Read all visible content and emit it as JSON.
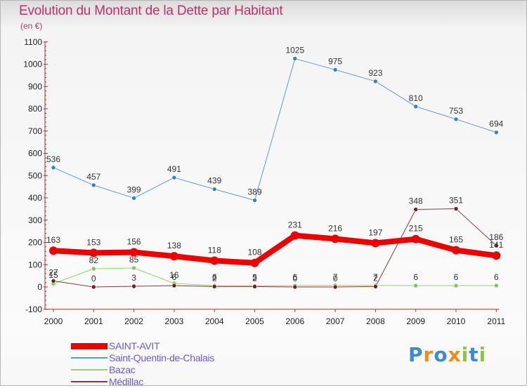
{
  "header": {
    "title": "Evolution du Montant de la Dette par Habitant",
    "subtitle": "(en €)"
  },
  "chart_data": {
    "type": "line",
    "title": "Evolution du Montant de la Dette par Habitant",
    "ylabel": "(en €)",
    "xlabel": "",
    "x": [
      "2000",
      "2001",
      "2002",
      "2003",
      "2004",
      "2005",
      "2006",
      "2007",
      "2008",
      "2009",
      "2010",
      "2011"
    ],
    "ylim": [
      -100,
      1100
    ],
    "yticks": [
      -100,
      0,
      100,
      200,
      300,
      400,
      500,
      600,
      700,
      800,
      900,
      1000,
      1100
    ],
    "grid": false,
    "legend_position": "bottom-left",
    "series": [
      {
        "name": "Saint-Quentin-de-Chalais",
        "color": "#5a9bd5",
        "marker_color": "#3a7fc4",
        "width": 1,
        "values": [
          536,
          457,
          399,
          491,
          439,
          389,
          1025,
          975,
          923,
          810,
          753,
          694
        ]
      },
      {
        "name": "Bazac",
        "color": "#8fd66a",
        "marker_color": "#7cc94f",
        "width": 1,
        "values": [
          15,
          82,
          85,
          16,
          6,
          5,
          6,
          7,
          7,
          6,
          6,
          6
        ]
      },
      {
        "name": "Médillac",
        "color": "#8b3a3a",
        "marker_color": "#6b1f1f",
        "width": 1,
        "values": [
          27,
          0,
          3,
          6,
          2,
          2,
          0,
          0,
          2,
          348,
          351,
          186
        ]
      },
      {
        "name": "SAINT-AVIT",
        "color": "#ee0000",
        "marker_color": "#ee0000",
        "width": 8,
        "values": [
          163,
          153,
          156,
          138,
          118,
          108,
          231,
          216,
          197,
          215,
          165,
          141
        ]
      }
    ],
    "legend_order": [
      "SAINT-AVIT",
      "Saint-Quentin-de-Chalais",
      "Bazac",
      "Médillac"
    ]
  },
  "logo": {
    "letters": [
      "P",
      "r",
      "o",
      "x",
      "i",
      "t",
      "i"
    ],
    "colors": [
      "#3b8bd8",
      "#f08c1a",
      "#3b8bd8",
      "#f08c1a",
      "#8ac640",
      "#3b8bd8",
      "#8ac640"
    ]
  }
}
